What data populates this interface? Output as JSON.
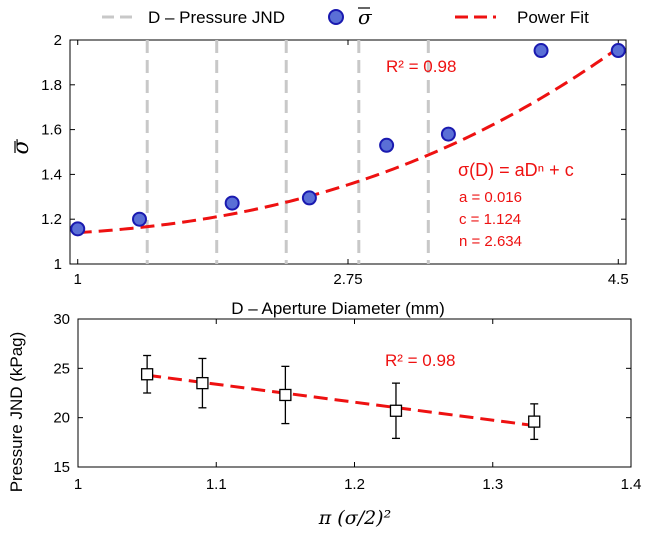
{
  "colors": {
    "fit": "#ee1111",
    "jnd_line": "#c8c8c8",
    "marker_fill": "#5a6fd6",
    "marker_edge": "#1a1ab0",
    "axis": "#000000"
  },
  "legend": {
    "jnd": "D – Pressure JND",
    "sigma": "σ",
    "fit": "Power Fit"
  },
  "chart_data": [
    {
      "type": "scatter",
      "xlabel": "D – Aperture Diameter (mm)",
      "ylabel": "σ",
      "xlim": [
        0.95,
        4.55
      ],
      "ylim": [
        1,
        2
      ],
      "x_ticks": [
        1,
        2.75,
        4.5
      ],
      "x_tick_labels": [
        "1",
        "2.75",
        "4.5"
      ],
      "y_ticks": [
        1,
        1.2,
        1.4,
        1.6,
        1.8,
        2
      ],
      "y_tick_labels": [
        "1",
        "1.2",
        "1.4",
        "1.6",
        "1.8",
        "2"
      ],
      "jnd_lines_x": [
        1.45,
        1.9,
        2.35,
        2.82,
        3.27
      ],
      "series": [
        {
          "name": "σ",
          "x": [
            1.0,
            1.4,
            2.0,
            2.5,
            3.0,
            3.4,
            4.0,
            4.5
          ],
          "y": [
            1.157,
            1.2,
            1.272,
            1.295,
            1.53,
            1.58,
            1.953,
            1.953
          ]
        }
      ],
      "fit": {
        "name": "Power Fit",
        "a": 0.016,
        "c": 1.124,
        "n": 2.634
      },
      "annotations": {
        "r2": "R² = 0.98",
        "equation": "σ(D) = aDⁿ + c",
        "a": "a = 0.016",
        "c": "c = 1.124",
        "n": "n = 2.634"
      }
    },
    {
      "type": "scatter",
      "xlabel": "π (σ/2)²",
      "ylabel": "Pressure JND (kPag)",
      "xlim": [
        1,
        1.4
      ],
      "ylim": [
        15,
        30
      ],
      "x_ticks": [
        1,
        1.1,
        1.2,
        1.3,
        1.4
      ],
      "x_tick_labels": [
        "1",
        "1.1",
        "1.2",
        "1.3",
        "1.4"
      ],
      "y_ticks": [
        15,
        20,
        25,
        30
      ],
      "y_tick_labels": [
        "15",
        "20",
        "25",
        "30"
      ],
      "series": [
        {
          "x": [
            1.05,
            1.09,
            1.15,
            1.23,
            1.33
          ],
          "y": [
            24.4,
            23.5,
            22.3,
            20.7,
            19.6
          ],
          "err": [
            1.9,
            2.5,
            2.9,
            2.8,
            1.8
          ]
        }
      ],
      "fit_line": {
        "x": [
          1.05,
          1.33
        ],
        "y": [
          24.3,
          19.2
        ]
      },
      "annotations": {
        "r2": "R² = 0.98"
      }
    }
  ]
}
